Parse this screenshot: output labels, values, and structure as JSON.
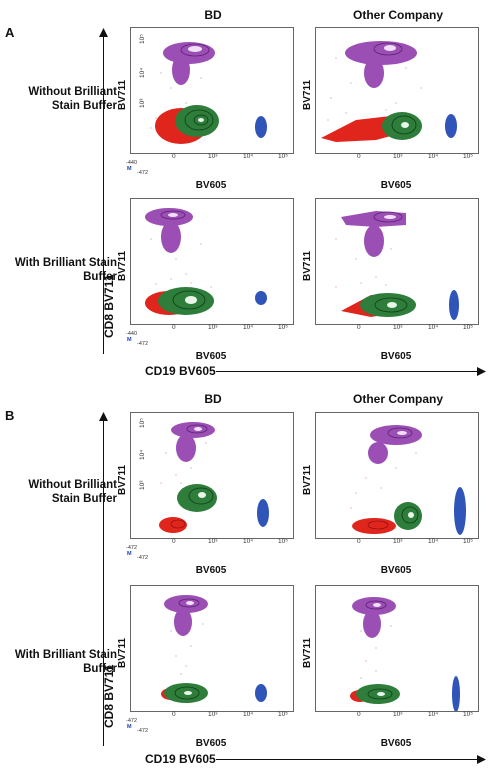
{
  "panels": [
    {
      "label": "A",
      "columns": [
        "BD",
        "Other Company"
      ],
      "rows": [
        "Without Brilliant Stain Buffer",
        "With Brilliant Stain Buffer"
      ],
      "y_axis_main": "CD8 BV711",
      "x_axis_main": "CD19 BV605",
      "plot_xlabel": "BV605",
      "plot_ylabel": "BV711",
      "x_ticks": [
        "0",
        "10³",
        "10⁴",
        "10⁵"
      ],
      "y_ticks": [
        "0",
        "10³",
        "10⁴",
        "10⁵"
      ],
      "corner_m": "M",
      "corner_y": "-440",
      "corner_x": "-472"
    },
    {
      "label": "B",
      "columns": [
        "BD",
        "Other Company"
      ],
      "rows": [
        "Without Brilliant Stain Buffer",
        "With Brilliant Stain Buffer"
      ],
      "y_axis_main": "CD8 BV711",
      "x_axis_main": "CD19 BV605",
      "plot_xlabel": "BV605",
      "plot_ylabel": "BV711",
      "x_ticks": [
        "0",
        "10³",
        "10⁴",
        "10⁵"
      ],
      "y_ticks": [
        "0",
        "10³",
        "10⁴",
        "10⁵"
      ],
      "corner_m": "M",
      "corner_y": "-472",
      "corner_x": "-472"
    }
  ],
  "colors": {
    "cd8_population": "#9b4fb4",
    "cd4_population": "#2e7d3a",
    "spillover_population": "#e0251c",
    "cd19_population": "#2f55b8",
    "background_events": "#e39b6a"
  }
}
